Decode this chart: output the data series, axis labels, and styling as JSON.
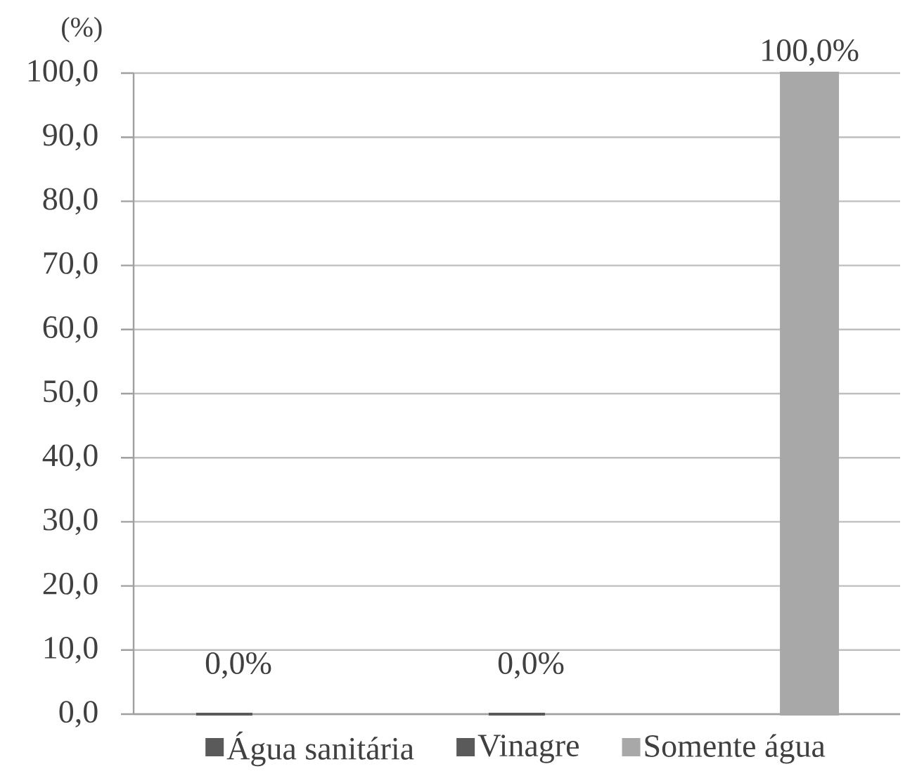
{
  "chart_data": {
    "type": "bar",
    "ylabel": "(%)",
    "categories": [
      null,
      null,
      null
    ],
    "series": [
      {
        "name": "Água sanitária",
        "color": "#5a5a5a",
        "values": [
          0,
          null,
          null
        ],
        "value_labels": [
          "0,0%",
          null,
          null
        ]
      },
      {
        "name": "Vinagre",
        "color": "#5a5a5a",
        "values": [
          null,
          0,
          null
        ],
        "value_labels": [
          null,
          "0,0%",
          null
        ]
      },
      {
        "name": "Somente água",
        "color": "#a8a8a8",
        "values": [
          null,
          null,
          100
        ],
        "value_labels": [
          null,
          null,
          "100,0%"
        ]
      }
    ],
    "ylim": [
      0,
      100
    ],
    "yticks": [
      {
        "value": 0,
        "label": "0,0"
      },
      {
        "value": 10,
        "label": "10,0"
      },
      {
        "value": 20,
        "label": "20,0"
      },
      {
        "value": 30,
        "label": "30,0"
      },
      {
        "value": 40,
        "label": "40,0"
      },
      {
        "value": 50,
        "label": "50,0"
      },
      {
        "value": 60,
        "label": "60,0"
      },
      {
        "value": 70,
        "label": "70,0"
      },
      {
        "value": 80,
        "label": "80,0"
      },
      {
        "value": 90,
        "label": "90,0"
      },
      {
        "value": 100,
        "label": "100,0"
      }
    ],
    "grid": "y",
    "legend": "bottom"
  }
}
